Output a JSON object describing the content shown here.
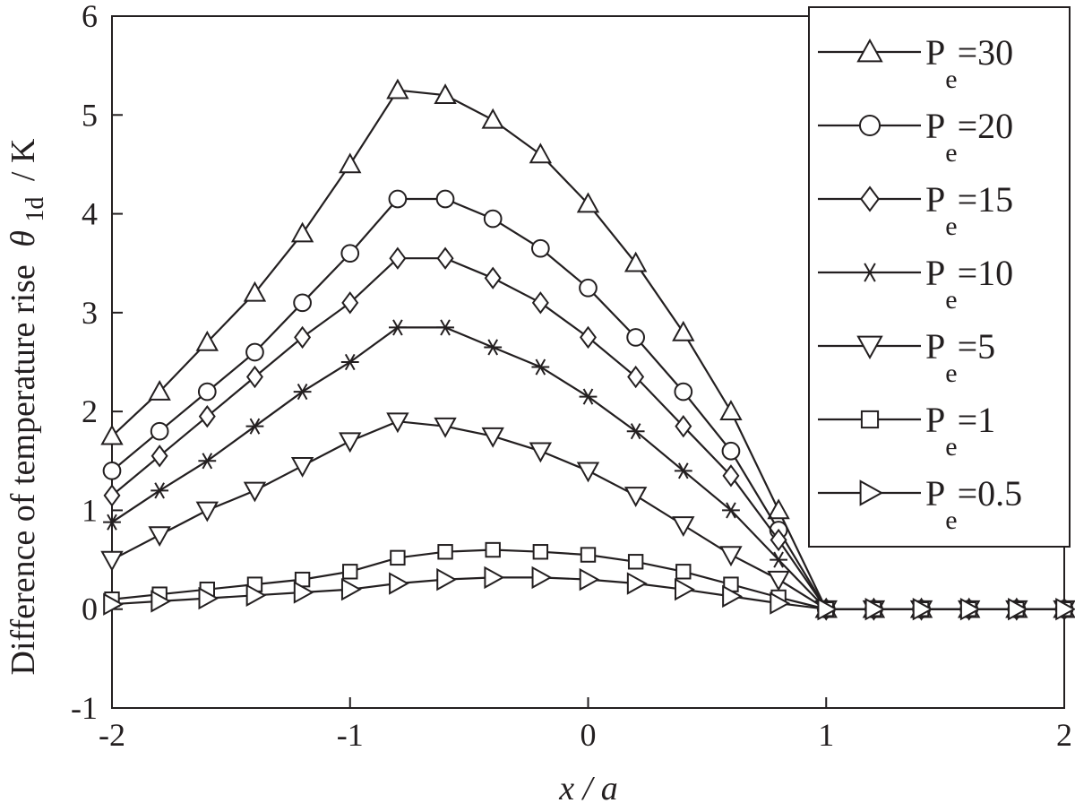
{
  "chart_data": {
    "type": "line",
    "xlabel": "x / a",
    "ylabel_main": "Difference of temperature rise",
    "ylabel_symbol": "θ",
    "ylabel_subscript": "1d",
    "ylabel_unit": "/ K",
    "xlim": [
      -2,
      2
    ],
    "ylim": [
      -1,
      6
    ],
    "xticks": [
      "-2",
      "-1",
      "0",
      "1",
      "2"
    ],
    "yticks": [
      "-1",
      "0",
      "1",
      "2",
      "3",
      "4",
      "5",
      "6"
    ],
    "legend_position": "top-right",
    "line_color": "#231f20",
    "series": [
      {
        "name": "Pe=30",
        "legend_base": "P",
        "legend_sub": "e",
        "legend_value": "=30",
        "marker": "triangle-up",
        "x": [
          -2,
          -1.8,
          -1.6,
          -1.4,
          -1.2,
          -1.0,
          -0.8,
          -0.6,
          -0.4,
          -0.2,
          0,
          0.2,
          0.4,
          0.6,
          0.8,
          1.0,
          1.2,
          1.4,
          1.6,
          1.8,
          2.0
        ],
        "y": [
          1.75,
          2.2,
          2.7,
          3.2,
          3.8,
          4.5,
          5.25,
          5.2,
          4.95,
          4.6,
          4.1,
          3.5,
          2.8,
          2.0,
          1.0,
          0.0,
          0.0,
          0.0,
          0.0,
          0.0,
          0.0
        ]
      },
      {
        "name": "Pe=20",
        "legend_base": "P",
        "legend_sub": "e",
        "legend_value": "=20",
        "marker": "circle",
        "x": [
          -2,
          -1.8,
          -1.6,
          -1.4,
          -1.2,
          -1.0,
          -0.8,
          -0.6,
          -0.4,
          -0.2,
          0,
          0.2,
          0.4,
          0.6,
          0.8,
          1.0,
          1.2,
          1.4,
          1.6,
          1.8,
          2.0
        ],
        "y": [
          1.4,
          1.8,
          2.2,
          2.6,
          3.1,
          3.6,
          4.15,
          4.15,
          3.95,
          3.65,
          3.25,
          2.75,
          2.2,
          1.6,
          0.8,
          0.0,
          0.0,
          0.0,
          0.0,
          0.0,
          0.0
        ]
      },
      {
        "name": "Pe=15",
        "legend_base": "P",
        "legend_sub": "e",
        "legend_value": "=15",
        "marker": "diamond",
        "x": [
          -2,
          -1.8,
          -1.6,
          -1.4,
          -1.2,
          -1.0,
          -0.8,
          -0.6,
          -0.4,
          -0.2,
          0,
          0.2,
          0.4,
          0.6,
          0.8,
          1.0,
          1.2,
          1.4,
          1.6,
          1.8,
          2.0
        ],
        "y": [
          1.15,
          1.55,
          1.95,
          2.35,
          2.75,
          3.1,
          3.55,
          3.55,
          3.35,
          3.1,
          2.75,
          2.35,
          1.85,
          1.35,
          0.7,
          0.0,
          0.0,
          0.0,
          0.0,
          0.0,
          0.0
        ]
      },
      {
        "name": "Pe=10",
        "legend_base": "P",
        "legend_sub": "e",
        "legend_value": "=10",
        "marker": "star",
        "x": [
          -2,
          -1.8,
          -1.6,
          -1.4,
          -1.2,
          -1.0,
          -0.8,
          -0.6,
          -0.4,
          -0.2,
          0,
          0.2,
          0.4,
          0.6,
          0.8,
          1.0,
          1.2,
          1.4,
          1.6,
          1.8,
          2.0
        ],
        "y": [
          0.88,
          1.2,
          1.5,
          1.85,
          2.2,
          2.5,
          2.85,
          2.85,
          2.65,
          2.45,
          2.15,
          1.8,
          1.4,
          1.0,
          0.5,
          0.0,
          0.0,
          0.0,
          0.0,
          0.0,
          0.0
        ]
      },
      {
        "name": "Pe=5",
        "legend_base": "P",
        "legend_sub": "e",
        "legend_value": "=5",
        "marker": "triangle-down",
        "x": [
          -2,
          -1.8,
          -1.6,
          -1.4,
          -1.2,
          -1.0,
          -0.8,
          -0.6,
          -0.4,
          -0.2,
          0,
          0.2,
          0.4,
          0.6,
          0.8,
          1.0,
          1.2,
          1.4,
          1.6,
          1.8,
          2.0
        ],
        "y": [
          0.5,
          0.75,
          1.0,
          1.2,
          1.45,
          1.7,
          1.9,
          1.85,
          1.75,
          1.6,
          1.4,
          1.15,
          0.85,
          0.55,
          0.3,
          0.0,
          0.0,
          0.0,
          0.0,
          0.0,
          0.0
        ]
      },
      {
        "name": "Pe=1",
        "legend_base": "P",
        "legend_sub": "e",
        "legend_value": "=1",
        "marker": "square",
        "x": [
          -2,
          -1.8,
          -1.6,
          -1.4,
          -1.2,
          -1.0,
          -0.8,
          -0.6,
          -0.4,
          -0.2,
          0,
          0.2,
          0.4,
          0.6,
          0.8,
          1.0,
          1.2,
          1.4,
          1.6,
          1.8,
          2.0
        ],
        "y": [
          0.1,
          0.15,
          0.2,
          0.25,
          0.3,
          0.38,
          0.52,
          0.58,
          0.6,
          0.58,
          0.55,
          0.48,
          0.38,
          0.25,
          0.12,
          0.0,
          0.0,
          0.0,
          0.0,
          0.0,
          0.0
        ]
      },
      {
        "name": "Pe=0.5",
        "legend_base": "P",
        "legend_sub": "e",
        "legend_value": "=0.5",
        "marker": "triangle-right",
        "x": [
          -2,
          -1.8,
          -1.6,
          -1.4,
          -1.2,
          -1.0,
          -0.8,
          -0.6,
          -0.4,
          -0.2,
          0,
          0.2,
          0.4,
          0.6,
          0.8,
          1.0,
          1.2,
          1.4,
          1.6,
          1.8,
          2.0
        ],
        "y": [
          0.05,
          0.08,
          0.11,
          0.14,
          0.17,
          0.2,
          0.26,
          0.3,
          0.32,
          0.32,
          0.3,
          0.26,
          0.2,
          0.13,
          0.06,
          0.0,
          0.0,
          0.0,
          0.0,
          0.0,
          0.0
        ]
      }
    ]
  }
}
